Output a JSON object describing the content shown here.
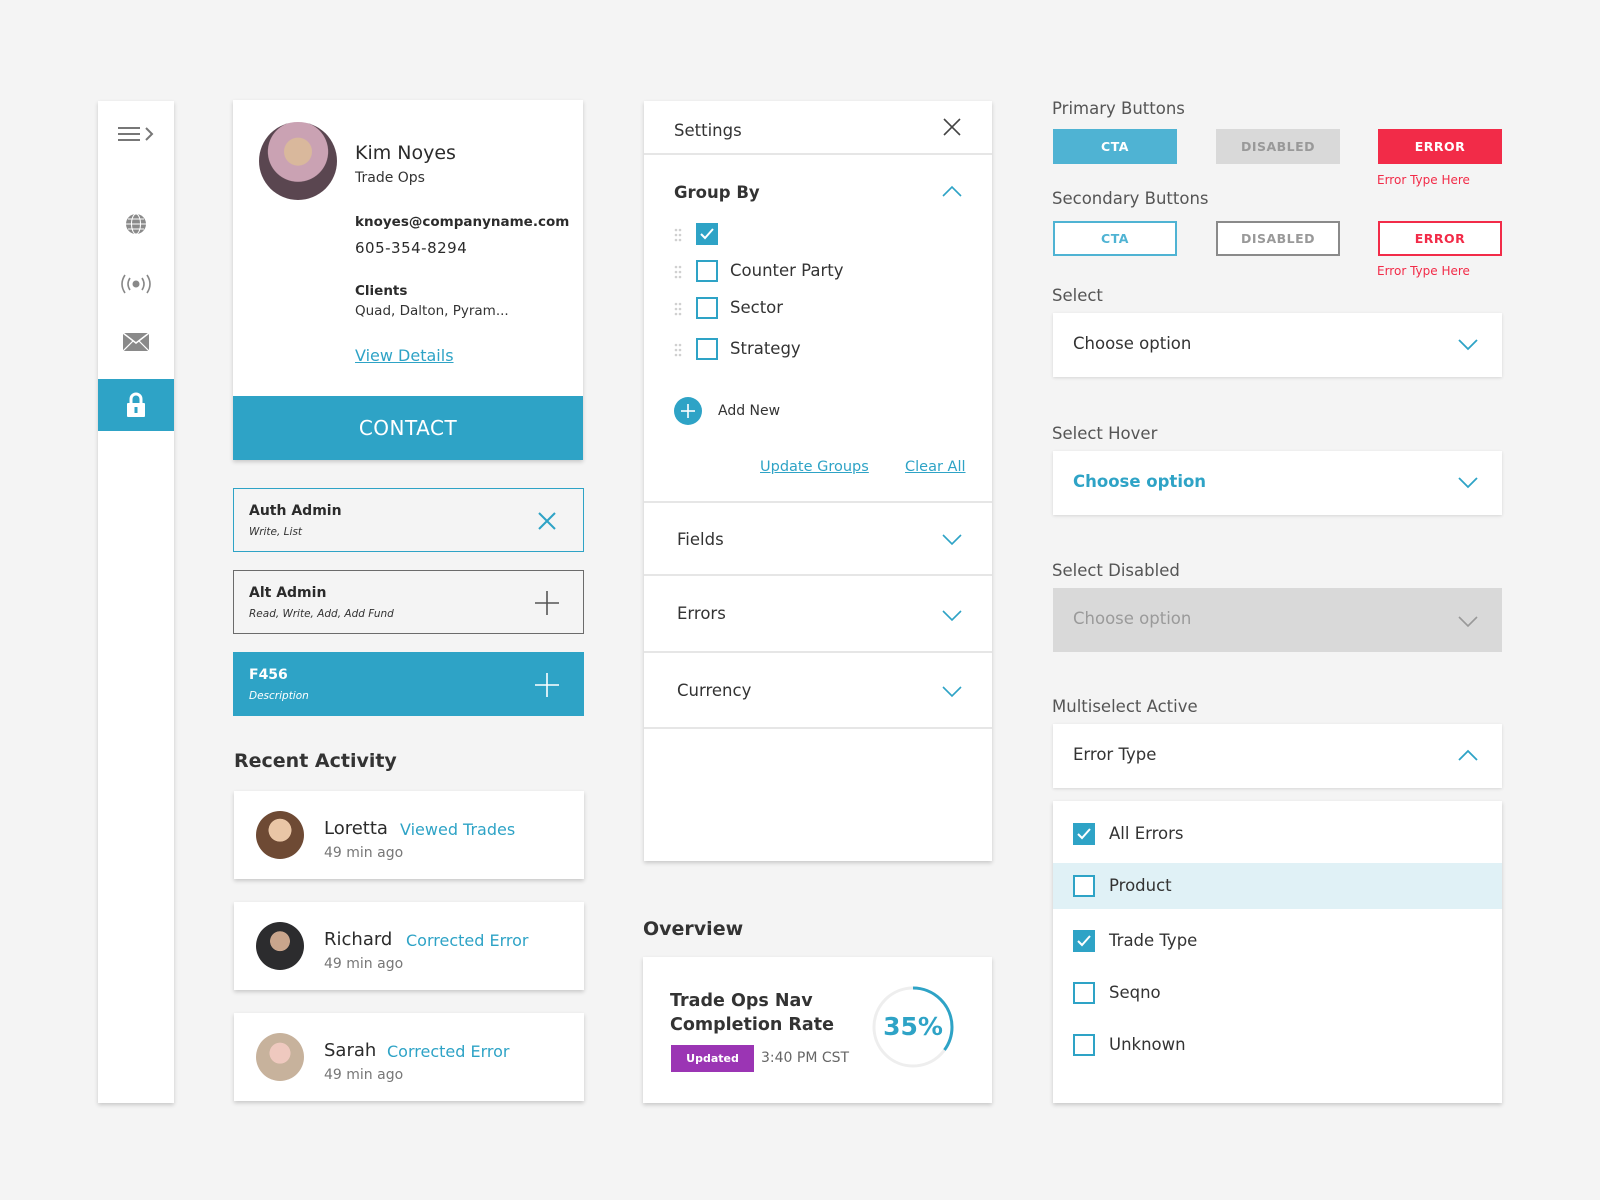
{
  "sidebar": {
    "items": [
      {
        "icon": "menu-expand-icon"
      },
      {
        "icon": "globe-icon"
      },
      {
        "icon": "broadcast-icon"
      },
      {
        "icon": "mail-icon"
      },
      {
        "icon": "lock-icon",
        "active": true
      }
    ]
  },
  "profile": {
    "name": "Kim Noyes",
    "role": "Trade Ops",
    "email": "knoyes@companyname.com",
    "phone": "605-354-8294",
    "clients_label": "Clients",
    "clients": "Quad, Dalton, Pyram...",
    "details_link": "View Details",
    "contact_button": "CONTACT"
  },
  "roles": [
    {
      "title": "Auth Admin",
      "subtitle": "Write, List",
      "action": "close-icon",
      "state": "selected"
    },
    {
      "title": "Alt Admin",
      "subtitle": "Read, Write, Add, Add Fund",
      "action": "plus-icon",
      "state": "default"
    },
    {
      "title": "F456",
      "subtitle": "Description",
      "action": "plus-icon",
      "state": "active"
    }
  ],
  "recent_activity": {
    "title": "Recent Activity",
    "items": [
      {
        "name": "Loretta",
        "action": "Viewed Trades",
        "time": "49 min ago"
      },
      {
        "name": "Richard",
        "action": "Corrected Error",
        "time": "49 min ago"
      },
      {
        "name": "Sarah",
        "action": "Corrected Error",
        "time": "49 min ago"
      }
    ]
  },
  "settings": {
    "title": "Settings",
    "group_by": {
      "label": "Group By",
      "options": [
        {
          "label": "",
          "checked": true
        },
        {
          "label": "Counter Party",
          "checked": false
        },
        {
          "label": "Sector",
          "checked": false
        },
        {
          "label": "Strategy",
          "checked": false
        }
      ],
      "add_new": "Add New",
      "update_link": "Update Groups",
      "clear_link": "Clear All"
    },
    "sections": [
      "Fields",
      "Errors",
      "Currency"
    ]
  },
  "overview": {
    "title": "Overview",
    "card_title": "Trade Ops Nav Completion Rate",
    "badge": "Updated",
    "time": "3:40 PM CST",
    "percent_label": "35%",
    "percent_value": 0.35
  },
  "components": {
    "primary_title": "Primary Buttons",
    "secondary_title": "Secondary Buttons",
    "btn_cta": "CTA",
    "btn_disabled": "DISABLED",
    "btn_error": "ERROR",
    "error_note": "Error Type Here",
    "select_title": "Select",
    "select_hover_title": "Select Hover",
    "select_disabled_title": "Select Disabled",
    "select_placeholder": "Choose option",
    "multiselect_title": "Multiselect Active",
    "multiselect_value": "Error Type",
    "multiselect_options": [
      {
        "label": "All Errors",
        "checked": true
      },
      {
        "label": "Product",
        "checked": false,
        "hover": true
      },
      {
        "label": "Trade Type",
        "checked": true
      },
      {
        "label": "Seqno",
        "checked": false
      },
      {
        "label": "Unknown",
        "checked": false
      }
    ]
  },
  "colors": {
    "accent": "#2ea3c6",
    "error": "#f22b48",
    "badge": "#9b35b4",
    "disabled": "#d9d9d9",
    "hover_row": "#e0f1f6"
  }
}
